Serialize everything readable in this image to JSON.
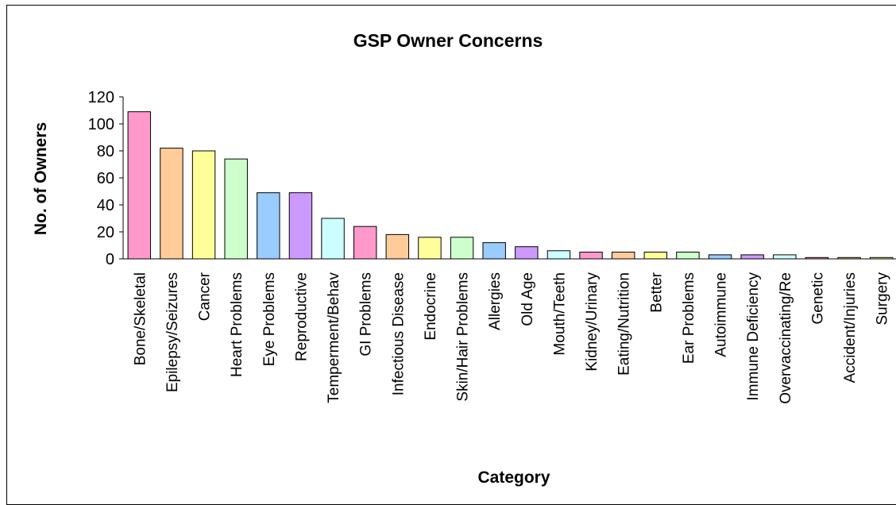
{
  "chart_data": {
    "type": "bar",
    "title": "GSP Owner Concerns",
    "xlabel": "Category",
    "ylabel": "No. of Owners",
    "ylim": [
      0,
      120
    ],
    "yticks": [
      0,
      20,
      40,
      60,
      80,
      100,
      120
    ],
    "grid": false,
    "legend": "none",
    "categories": [
      "Bone/Skeletal",
      "Epilepsy/Seizures",
      "Cancer",
      "Heart Problems",
      "Eye Problems",
      "Reproductive",
      "Temperment/Behav",
      "GI Problems",
      "Infectious Disease",
      "Endocrine",
      "Skin/Hair Problems",
      "Allergies",
      "Old Age",
      "Mouth/Teeth",
      "Kidney/Urinary",
      "Eating/Nutrition",
      "Better",
      "Ear Problems",
      "Autoimmune",
      "Immune Deficiency",
      "Overvaccinating/Re",
      "Genetic",
      "Accident/Injuries",
      "Surgery"
    ],
    "values": [
      109,
      82,
      80,
      74,
      49,
      49,
      30,
      24,
      18,
      16,
      16,
      12,
      9,
      6,
      5,
      5,
      5,
      5,
      3,
      3,
      3,
      1,
      1,
      1
    ],
    "bar_colors": [
      "#ff99cc",
      "#ffcc99",
      "#ffff99",
      "#ccffcc",
      "#99ccff",
      "#cc99ff",
      "#ccffff",
      "#ff99cc",
      "#ffcc99",
      "#ffff99",
      "#ccffcc",
      "#99ccff",
      "#cc99ff",
      "#ccffff",
      "#ff99cc",
      "#ffcc99",
      "#ffff99",
      "#ccffcc",
      "#99ccff",
      "#cc99ff",
      "#ccffff",
      "#ff99cc",
      "#ffcc99",
      "#ffff99"
    ],
    "bar_outline": "#000000"
  }
}
